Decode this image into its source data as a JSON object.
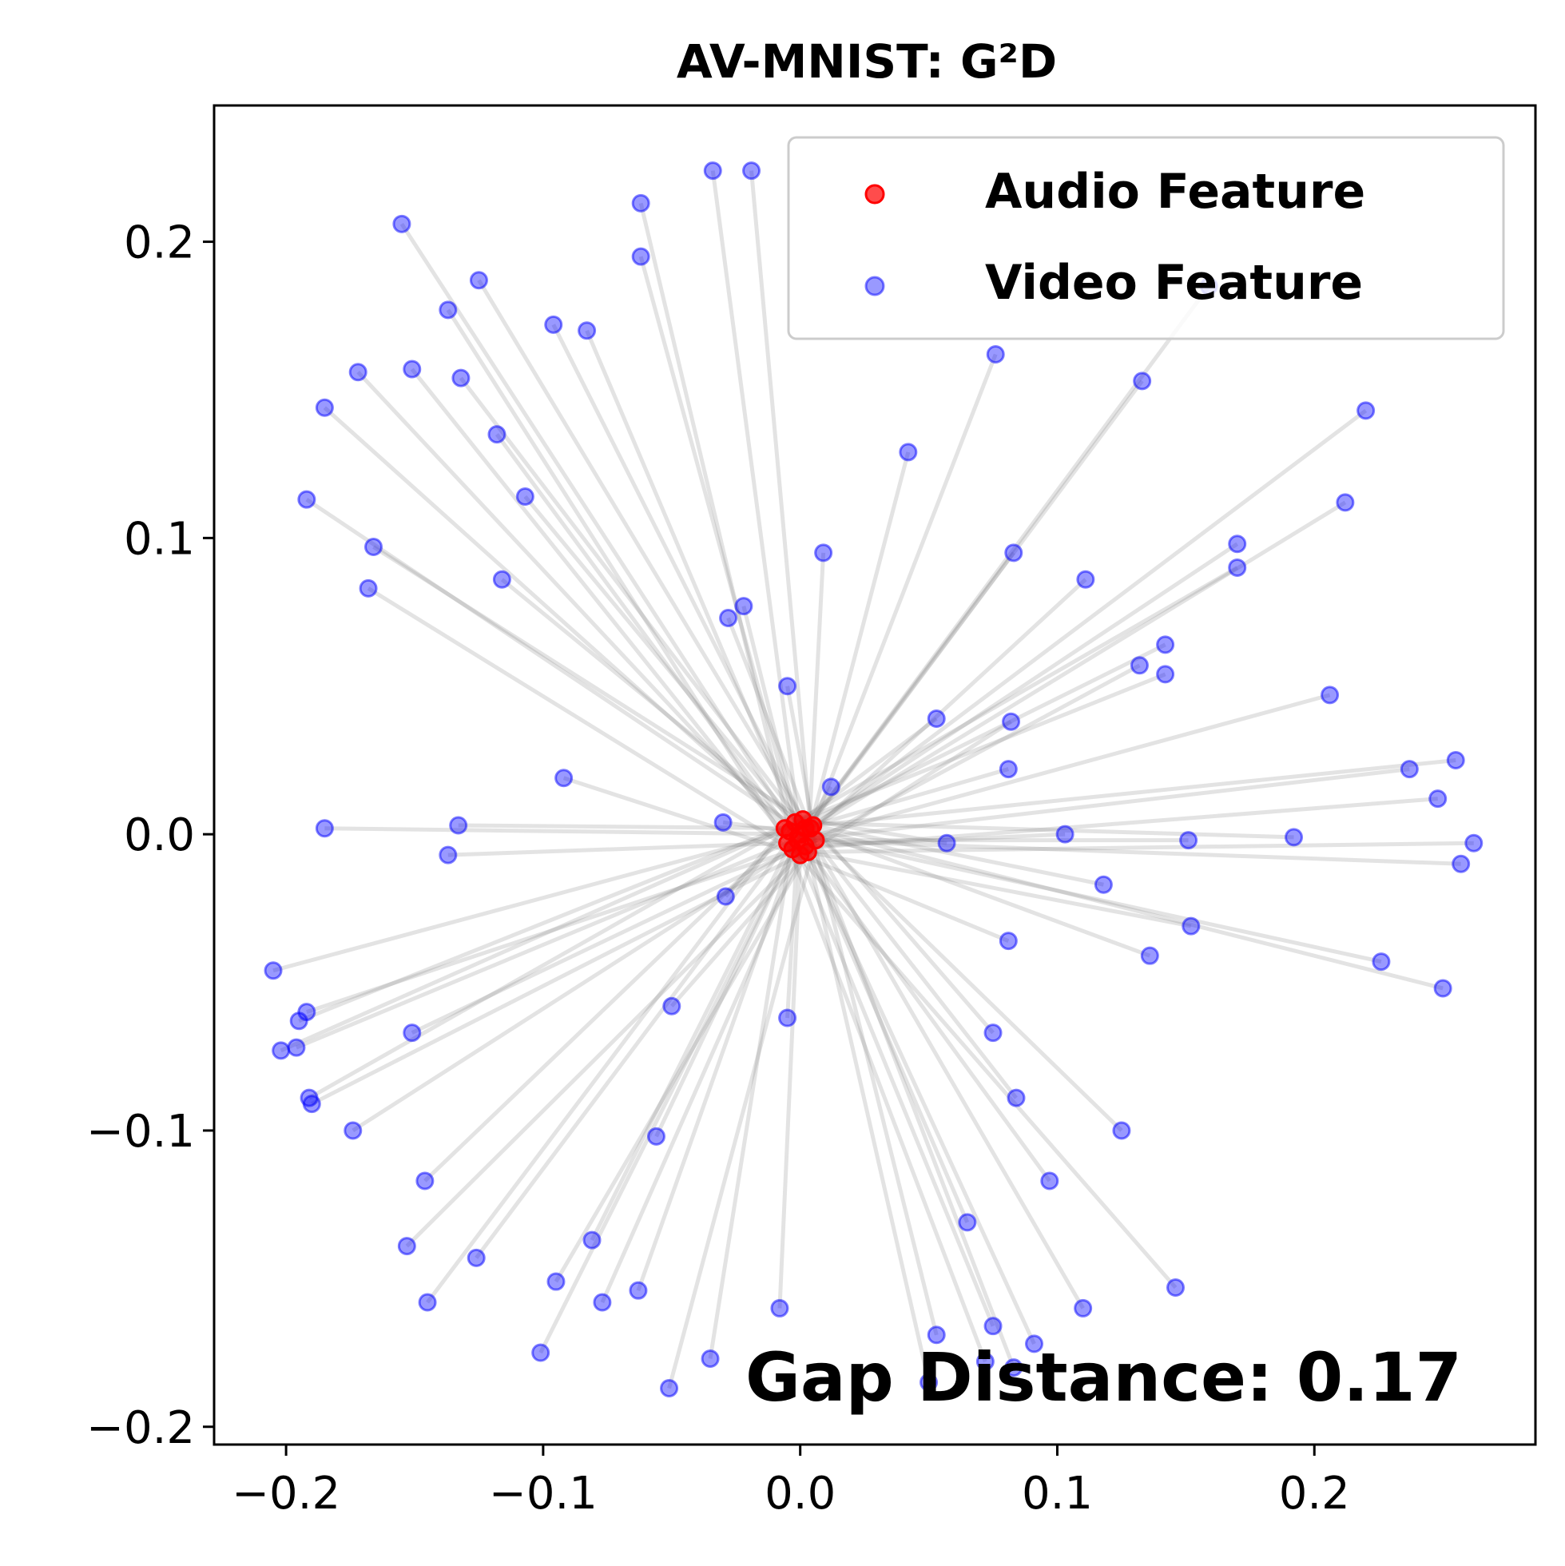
{
  "chart_data": {
    "type": "scatter",
    "title": "AV-MNIST: G²D",
    "xlabel": "",
    "ylabel": "",
    "xlim": [
      -0.228,
      0.286
    ],
    "ylim": [
      -0.206,
      0.246
    ],
    "xticks": [
      -0.2,
      -0.1,
      0.0,
      0.1,
      0.2
    ],
    "yticks": [
      -0.2,
      -0.1,
      0.0,
      0.1,
      0.2
    ],
    "xtick_labels": [
      "−0.2",
      "−0.1",
      "0.0",
      "0.1",
      "0.2"
    ],
    "ytick_labels": [
      "−0.2",
      "−0.1",
      "0.0",
      "0.1",
      "0.2"
    ],
    "grid": false,
    "legend": {
      "placement": "top-right",
      "entries": [
        {
          "label": "Audio Feature",
          "color": "#ff0000"
        },
        {
          "label": "Video Feature",
          "color": "#0000ff"
        }
      ]
    },
    "annotation": {
      "text": "Gap Distance: 0.17",
      "placement": "bottom-right"
    },
    "series": [
      {
        "name": "Audio Feature",
        "color": "#ff0000",
        "points": [
          [
            0.0,
            0.0
          ],
          [
            0.004,
            0.002
          ],
          [
            -0.004,
            0.001
          ],
          [
            0.002,
            -0.004
          ],
          [
            -0.002,
            0.004
          ],
          [
            0.006,
            -0.002
          ],
          [
            -0.005,
            -0.003
          ],
          [
            0.001,
            0.005
          ],
          [
            0.003,
            -0.006
          ],
          [
            -0.001,
            -0.002
          ],
          [
            0.005,
            0.003
          ],
          [
            -0.006,
            0.002
          ],
          [
            0.0,
            -0.007
          ],
          [
            0.002,
            0.002
          ],
          [
            -0.003,
            -0.005
          ]
        ]
      },
      {
        "name": "Video Feature",
        "color": "#0000ff",
        "points": [
          [
            -0.034,
            0.224
          ],
          [
            -0.019,
            0.224
          ],
          [
            -0.062,
            0.213
          ],
          [
            -0.155,
            0.206
          ],
          [
            -0.062,
            0.195
          ],
          [
            -0.125,
            0.187
          ],
          [
            -0.137,
            0.177
          ],
          [
            -0.096,
            0.172
          ],
          [
            -0.083,
            0.17
          ],
          [
            0.159,
            0.185
          ],
          [
            0.076,
            0.162
          ],
          [
            -0.172,
            0.156
          ],
          [
            -0.151,
            0.157
          ],
          [
            -0.132,
            0.154
          ],
          [
            0.133,
            0.153
          ],
          [
            -0.185,
            0.144
          ],
          [
            0.22,
            0.143
          ],
          [
            -0.118,
            0.135
          ],
          [
            0.042,
            0.129
          ],
          [
            -0.107,
            0.114
          ],
          [
            -0.192,
            0.113
          ],
          [
            0.212,
            0.112
          ],
          [
            -0.166,
            0.097
          ],
          [
            0.009,
            0.095
          ],
          [
            0.083,
            0.095
          ],
          [
            0.17,
            0.098
          ],
          [
            0.17,
            0.09
          ],
          [
            -0.168,
            0.083
          ],
          [
            -0.116,
            0.086
          ],
          [
            0.111,
            0.086
          ],
          [
            -0.022,
            0.077
          ],
          [
            -0.028,
            0.073
          ],
          [
            0.142,
            0.064
          ],
          [
            0.132,
            0.057
          ],
          [
            0.142,
            0.054
          ],
          [
            -0.005,
            0.05
          ],
          [
            0.206,
            0.047
          ],
          [
            0.053,
            0.039
          ],
          [
            0.082,
            0.038
          ],
          [
            0.237,
            0.022
          ],
          [
            0.081,
            0.022
          ],
          [
            0.255,
            0.025
          ],
          [
            -0.092,
            0.019
          ],
          [
            0.012,
            0.016
          ],
          [
            0.248,
            0.012
          ],
          [
            -0.185,
            0.002
          ],
          [
            -0.133,
            0.003
          ],
          [
            -0.03,
            0.004
          ],
          [
            0.103,
            0.0
          ],
          [
            0.192,
            -0.001
          ],
          [
            0.151,
            -0.002
          ],
          [
            -0.137,
            -0.007
          ],
          [
            0.057,
            -0.003
          ],
          [
            0.262,
            -0.003
          ],
          [
            0.257,
            -0.01
          ],
          [
            0.118,
            -0.017
          ],
          [
            -0.029,
            -0.021
          ],
          [
            0.081,
            -0.036
          ],
          [
            0.136,
            -0.041
          ],
          [
            0.152,
            -0.031
          ],
          [
            0.226,
            -0.043
          ],
          [
            0.25,
            -0.052
          ],
          [
            -0.205,
            -0.046
          ],
          [
            -0.192,
            -0.06
          ],
          [
            -0.195,
            -0.063
          ],
          [
            -0.151,
            -0.067
          ],
          [
            -0.196,
            -0.072
          ],
          [
            -0.202,
            -0.073
          ],
          [
            -0.05,
            -0.058
          ],
          [
            -0.005,
            -0.062
          ],
          [
            0.075,
            -0.067
          ],
          [
            -0.191,
            -0.089
          ],
          [
            -0.19,
            -0.091
          ],
          [
            0.084,
            -0.089
          ],
          [
            -0.174,
            -0.1
          ],
          [
            -0.056,
            -0.102
          ],
          [
            0.125,
            -0.1
          ],
          [
            -0.146,
            -0.117
          ],
          [
            0.097,
            -0.117
          ],
          [
            0.065,
            -0.131
          ],
          [
            -0.153,
            -0.139
          ],
          [
            -0.126,
            -0.143
          ],
          [
            -0.081,
            -0.137
          ],
          [
            -0.095,
            -0.151
          ],
          [
            -0.063,
            -0.154
          ],
          [
            -0.077,
            -0.158
          ],
          [
            -0.145,
            -0.158
          ],
          [
            -0.008,
            -0.16
          ],
          [
            0.11,
            -0.16
          ],
          [
            0.146,
            -0.153
          ],
          [
            -0.101,
            -0.175
          ],
          [
            0.053,
            -0.169
          ],
          [
            0.075,
            -0.166
          ],
          [
            0.091,
            -0.172
          ],
          [
            -0.035,
            -0.177
          ],
          [
            -0.051,
            -0.187
          ],
          [
            0.072,
            -0.178
          ],
          [
            0.083,
            -0.18
          ],
          [
            0.05,
            -0.185
          ]
        ]
      }
    ]
  }
}
